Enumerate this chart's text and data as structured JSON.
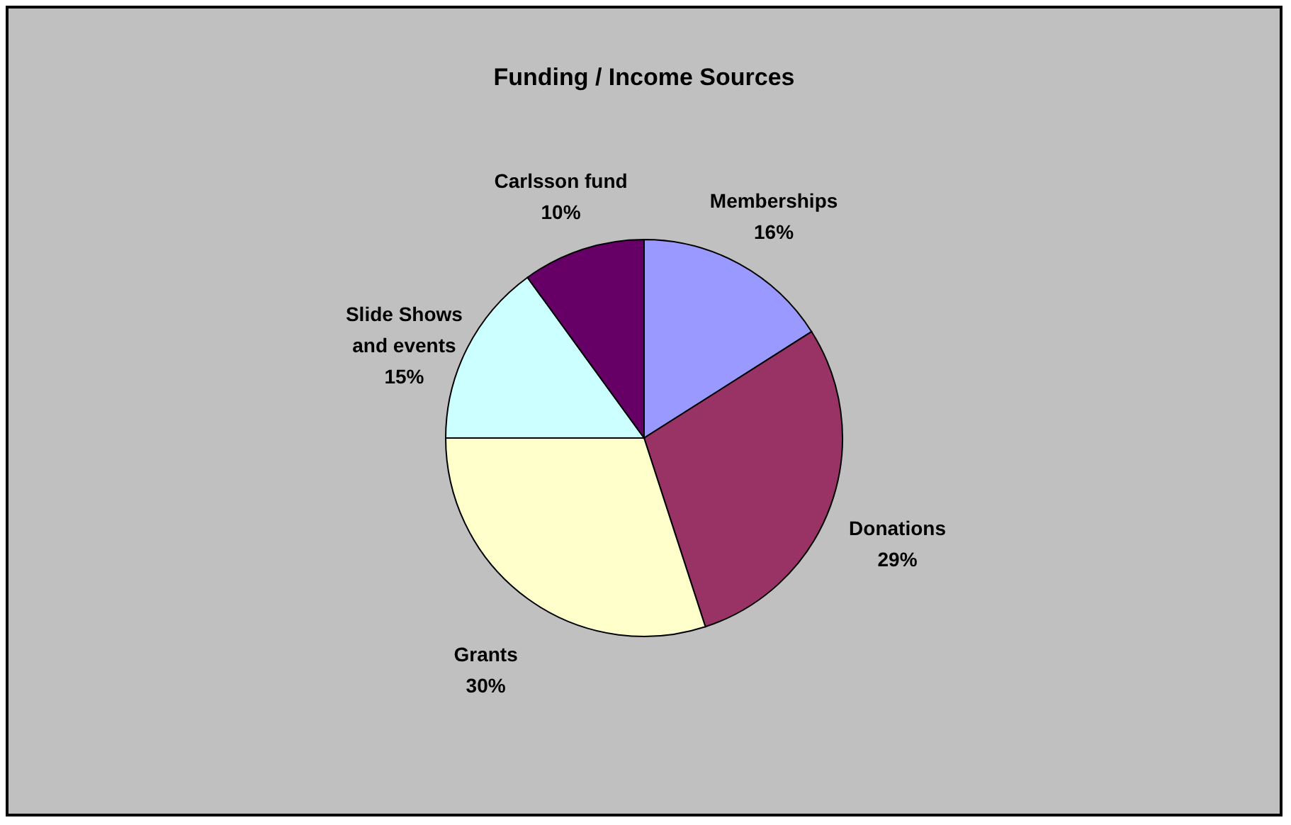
{
  "chart_data": {
    "type": "pie",
    "title": "Funding / Income Sources",
    "categories": [
      "Memberships",
      "Donations",
      "Grants",
      "Slide Shows and events",
      "Carlsson fund"
    ],
    "values": [
      16,
      29,
      30,
      15,
      10
    ],
    "value_labels": [
      "16%",
      "29%",
      "30%",
      "15%",
      "10%"
    ],
    "colors": [
      "#9999ff",
      "#993366",
      "#ffffcc",
      "#ccffff",
      "#660066"
    ],
    "legend": false
  }
}
